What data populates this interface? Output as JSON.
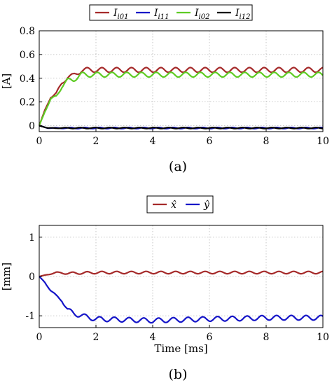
{
  "chart_data": [
    {
      "type": "line",
      "panel_label": "(a)",
      "ylabel": "[A]",
      "xlabel": "",
      "xlim": [
        0,
        10
      ],
      "ylim": [
        -0.05,
        0.8
      ],
      "xticks": [
        "0",
        "2",
        "4",
        "6",
        "8",
        "10"
      ],
      "yticks": [
        "0",
        "0.2",
        "0.4",
        "0.6",
        "0.8"
      ],
      "grid": true,
      "legend_placement": "top-center",
      "series": [
        {
          "name_main": "I",
          "name_sub": "i01",
          "color": "#a52a2a",
          "x": [
            0,
            0.2,
            0.4,
            0.6,
            0.8,
            1.0,
            1.2,
            1.5,
            2,
            3,
            4,
            5,
            6,
            7,
            8,
            9,
            10
          ],
          "y": [
            0,
            0.13,
            0.24,
            0.27,
            0.36,
            0.41,
            0.42,
            0.47,
            0.47,
            0.47,
            0.47,
            0.47,
            0.47,
            0.47,
            0.47,
            0.47,
            0.47
          ],
          "ripple": 0.02
        },
        {
          "name_main": "I",
          "name_sub": "i11",
          "color": "#1515c8",
          "x": [
            0,
            0.3,
            1,
            2,
            4,
            6,
            8,
            10
          ],
          "y": [
            0,
            -0.02,
            -0.02,
            -0.02,
            -0.02,
            -0.02,
            -0.02,
            -0.02
          ],
          "ripple": 0.005
        },
        {
          "name_main": "I",
          "name_sub": "i02",
          "color": "#5ecb24",
          "x": [
            0,
            0.2,
            0.4,
            0.6,
            0.8,
            1.0,
            1.2,
            1.5,
            2,
            3,
            4,
            5,
            6,
            7,
            8,
            9,
            10
          ],
          "y": [
            0,
            0.12,
            0.22,
            0.25,
            0.33,
            0.38,
            0.39,
            0.43,
            0.43,
            0.43,
            0.43,
            0.43,
            0.43,
            0.43,
            0.43,
            0.43,
            0.43
          ],
          "ripple": 0.02
        },
        {
          "name_main": "I",
          "name_sub": "i12",
          "color": "#000000",
          "x": [
            0,
            0.3,
            1,
            2,
            4,
            6,
            8,
            10
          ],
          "y": [
            0,
            -0.02,
            -0.02,
            -0.02,
            -0.02,
            -0.02,
            -0.02,
            -0.02
          ],
          "ripple": 0.004
        }
      ]
    },
    {
      "type": "line",
      "panel_label": "(b)",
      "ylabel": "[mm]",
      "xlabel": "Time [ms]",
      "xlim": [
        0,
        10
      ],
      "ylim": [
        -1.3,
        1.3
      ],
      "xticks": [
        "0",
        "2",
        "4",
        "6",
        "8",
        "10"
      ],
      "yticks": [
        "-1",
        "0",
        "1"
      ],
      "grid": true,
      "legend_placement": "top-center",
      "series": [
        {
          "name": "x̂",
          "color": "#a52a2a",
          "x": [
            0,
            0.3,
            0.6,
            1,
            2,
            4,
            6,
            8,
            10
          ],
          "y": [
            0,
            0.05,
            0.1,
            0.08,
            0.1,
            0.1,
            0.1,
            0.1,
            0.1
          ],
          "ripple": 0.03
        },
        {
          "name": "ŷ",
          "color": "#1515c8",
          "x": [
            0,
            0.2,
            0.4,
            0.6,
            0.8,
            1.0,
            1.2,
            1.5,
            2,
            3,
            4,
            5,
            6,
            7,
            8,
            9,
            10
          ],
          "y": [
            0,
            -0.15,
            -0.35,
            -0.5,
            -0.6,
            -0.85,
            -0.93,
            -1.0,
            -1.08,
            -1.1,
            -1.12,
            -1.1,
            -1.08,
            -1.07,
            -1.05,
            -1.05,
            -1.05
          ],
          "ripple": 0.06
        }
      ]
    }
  ]
}
